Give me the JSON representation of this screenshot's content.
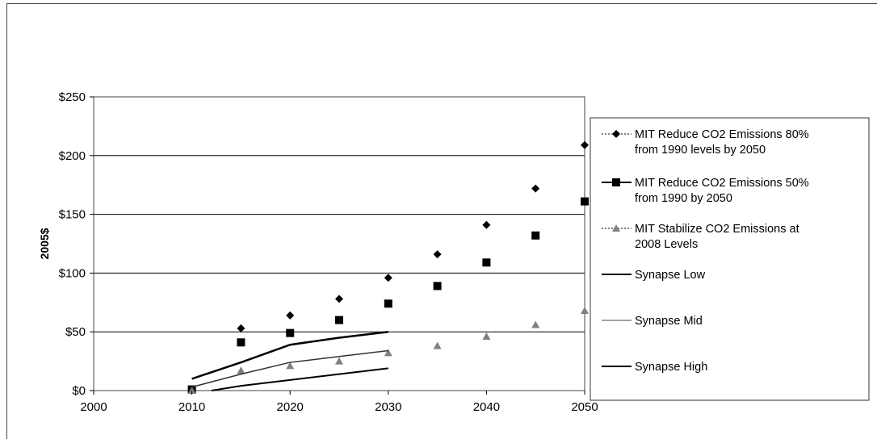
{
  "chart_data": {
    "type": "line",
    "title": "",
    "xlabel": "",
    "ylabel": "2005$",
    "xlim": [
      2000,
      2050
    ],
    "ylim": [
      0,
      250
    ],
    "x_ticks": [
      "2000",
      "2010",
      "2020",
      "2030",
      "2040",
      "2050"
    ],
    "y_ticks": [
      "$0",
      "$50",
      "$100",
      "$150",
      "$200",
      "$250"
    ],
    "grid": "horizontal",
    "legend_position": "right",
    "series": [
      {
        "name": "MIT Reduce CO2 Emissions 80% from 1990 levels by 2050",
        "style": "markers",
        "marker": "diamond",
        "color": "#000000",
        "points": [
          [
            2010,
            1
          ],
          [
            2015,
            53
          ],
          [
            2020,
            64
          ],
          [
            2025,
            78
          ],
          [
            2030,
            96
          ],
          [
            2035,
            116
          ],
          [
            2040,
            141
          ],
          [
            2045,
            172
          ],
          [
            2050,
            209
          ]
        ]
      },
      {
        "name": "MIT Reduce CO2 Emissions 50% from 1990 by 2050",
        "style": "markers",
        "marker": "square",
        "color": "#000000",
        "points": [
          [
            2010,
            1
          ],
          [
            2015,
            41
          ],
          [
            2020,
            49
          ],
          [
            2025,
            60
          ],
          [
            2030,
            74
          ],
          [
            2035,
            89
          ],
          [
            2040,
            109
          ],
          [
            2045,
            132
          ],
          [
            2050,
            161
          ]
        ]
      },
      {
        "name": "MIT Stabilize CO2 Emissions at 2008 Levels",
        "style": "markers",
        "marker": "triangle",
        "color": "#808080",
        "points": [
          [
            2010,
            0
          ],
          [
            2015,
            17
          ],
          [
            2020,
            21
          ],
          [
            2025,
            25
          ],
          [
            2030,
            32
          ],
          [
            2035,
            38
          ],
          [
            2040,
            46
          ],
          [
            2045,
            56
          ],
          [
            2050,
            68
          ]
        ]
      },
      {
        "name": "Synapse Low",
        "style": "line",
        "color": "#000000",
        "width": 2,
        "points": [
          [
            2012,
            0
          ],
          [
            2015,
            4
          ],
          [
            2020,
            9
          ],
          [
            2025,
            14
          ],
          [
            2030,
            19
          ]
        ]
      },
      {
        "name": "Synapse Mid",
        "style": "line",
        "color": "#333333",
        "width": 1.5,
        "points": [
          [
            2010,
            3
          ],
          [
            2015,
            14
          ],
          [
            2020,
            24
          ],
          [
            2025,
            29
          ],
          [
            2030,
            34
          ]
        ]
      },
      {
        "name": "Synapse High",
        "style": "line",
        "color": "#000000",
        "width": 2.5,
        "points": [
          [
            2010,
            10
          ],
          [
            2015,
            24
          ],
          [
            2020,
            39
          ],
          [
            2025,
            45
          ],
          [
            2030,
            50
          ]
        ]
      }
    ]
  },
  "legend": {
    "items": [
      {
        "line1": "MIT Reduce CO2 Emissions 80%",
        "line2": "from 1990 levels by 2050",
        "marker": "diamond",
        "line_style": "dotted"
      },
      {
        "line1": "MIT Reduce CO2 Emissions 50%",
        "line2": "from 1990 by 2050",
        "marker": "square",
        "line_style": "solid"
      },
      {
        "line1": "MIT Stabilize CO2 Emissions at",
        "line2": "2008 Levels",
        "marker": "triangle",
        "line_style": "dotted"
      },
      {
        "line1": "Synapse Low",
        "line2": "",
        "marker": "none",
        "line_style": "solid"
      },
      {
        "line1": "Synapse Mid",
        "line2": "",
        "marker": "none",
        "line_style": "thin"
      },
      {
        "line1": "Synapse High",
        "line2": "",
        "marker": "none",
        "line_style": "solid"
      }
    ]
  }
}
